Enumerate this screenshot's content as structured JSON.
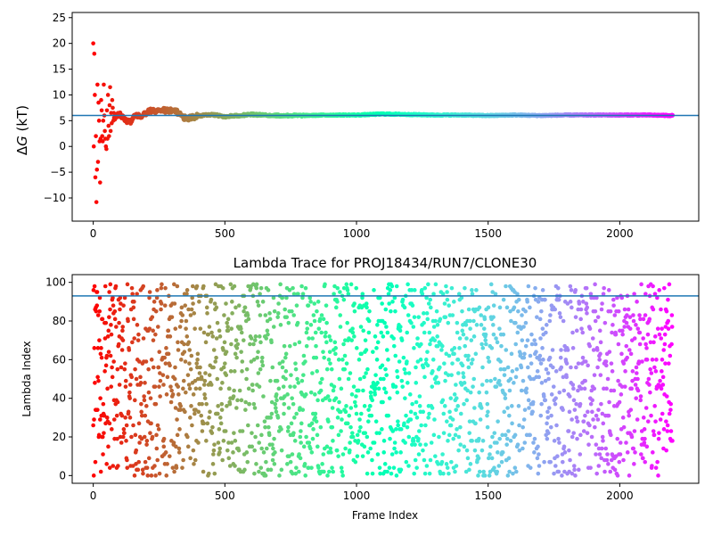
{
  "chart_data": [
    {
      "type": "scatter",
      "title": "",
      "xlabel": "",
      "ylabel": "ΔG (kT)",
      "ylabel_math_symbol": "Δ",
      "ylabel_math_var": "G",
      "ylabel_rest": " (kT)",
      "xlim": [
        -80,
        2300
      ],
      "ylim": [
        -14.5,
        26
      ],
      "xticks": [
        0,
        500,
        1000,
        1500,
        2000
      ],
      "yticks": [
        -10,
        -5,
        0,
        5,
        10,
        15,
        20,
        25
      ],
      "colormap": "rainbow (red at frame 0 → violet at frame 2200)",
      "hline": 6.0,
      "hline_color": "#1f77b4",
      "grid": false,
      "legend": "none",
      "early_points": {
        "x": [
          0,
          2,
          4,
          6,
          8,
          10,
          12,
          14,
          16,
          18,
          20,
          22,
          24,
          26,
          28,
          30,
          32,
          34,
          36,
          38,
          40,
          42,
          44,
          46,
          48,
          50,
          52,
          54,
          56,
          58,
          60,
          62,
          64,
          66,
          68,
          70,
          72,
          74,
          76,
          78
        ],
        "y": [
          20,
          0,
          18,
          10,
          -6,
          2,
          -10.8,
          -4.5,
          12,
          -3,
          8.5,
          5,
          1,
          -7,
          1.5,
          9,
          7,
          2,
          1,
          5,
          12,
          6,
          3,
          1.5,
          0,
          -0.5,
          7,
          1.5,
          10,
          4,
          2,
          8,
          11.5,
          3,
          6.5,
          4.5,
          9,
          7.5,
          5,
          6.5
        ]
      },
      "running_estimate": {
        "x": [
          80,
          100,
          120,
          140,
          160,
          180,
          200,
          220,
          240,
          260,
          280,
          300,
          320,
          340,
          360,
          400,
          450,
          500,
          550,
          600,
          650,
          700,
          800,
          900,
          1000,
          1100,
          1200,
          1300,
          1400,
          1500,
          1600,
          1700,
          1800,
          1900,
          2000,
          2100,
          2200
        ],
        "y": [
          5.5,
          6.3,
          5.2,
          4.8,
          6.2,
          5.8,
          6.5,
          7.0,
          6.6,
          7.2,
          6.9,
          7.1,
          6.6,
          5.6,
          5.5,
          5.9,
          6.2,
          5.8,
          6.0,
          6.2,
          6.1,
          6.0,
          6.0,
          6.1,
          6.1,
          6.3,
          6.2,
          6.1,
          6.1,
          6.0,
          6.1,
          6.0,
          6.1,
          6.1,
          6.1,
          6.1,
          6.0
        ]
      }
    },
    {
      "type": "scatter",
      "title": "Lambda Trace for PROJ18434/RUN7/CLONE30",
      "xlabel": "Frame Index",
      "ylabel": "Lambda Index",
      "xlim": [
        -80,
        2300
      ],
      "ylim": [
        -4,
        104
      ],
      "xticks": [
        0,
        500,
        1000,
        1500,
        2000
      ],
      "yticks": [
        0,
        20,
        40,
        60,
        80,
        100
      ],
      "colormap": "rainbow (red at frame 0 → violet at frame 2200)",
      "hline": 93,
      "hline_color": "#1f77b4",
      "grid": false,
      "legend": "none",
      "n_frames": 2200,
      "lambda_range": [
        0,
        99
      ]
    }
  ]
}
